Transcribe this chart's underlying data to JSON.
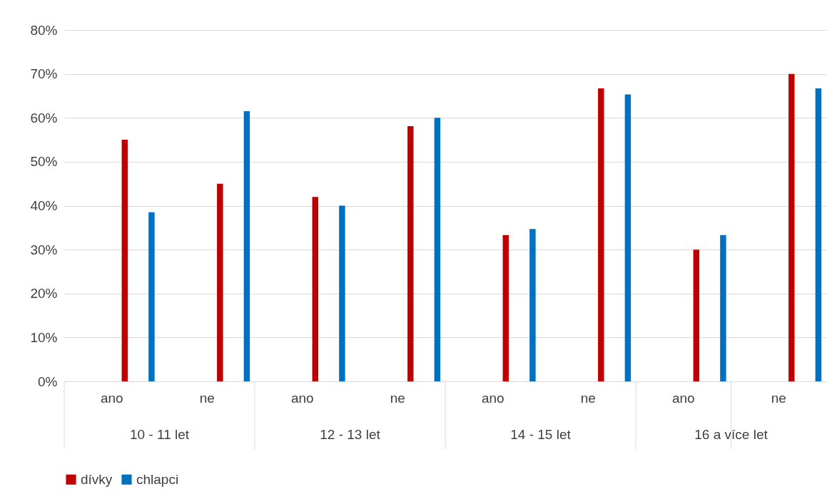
{
  "chart_data": {
    "type": "bar",
    "categories": [
      "ano",
      "ne",
      "ano",
      "ne",
      "ano",
      "ne",
      "ano",
      "ne"
    ],
    "annotations": [
      "10 - 11 let",
      "12 - 13 let",
      "14 - 15 let",
      "16 a více let"
    ],
    "series": [
      {
        "name": "dívky",
        "color": "#c00000",
        "values": [
          55,
          45,
          42,
          58.1,
          33.3,
          66.7,
          30,
          70
        ]
      },
      {
        "name": "chlapci",
        "color": "#0070c0",
        "values": [
          38.5,
          61.5,
          40,
          60,
          34.7,
          65.3,
          33.3,
          66.7
        ]
      }
    ],
    "ylim": [
      0,
      80
    ],
    "yticks": [
      {
        "value": 0,
        "label": "0%"
      },
      {
        "value": 10,
        "label": "10%"
      },
      {
        "value": 20,
        "label": "20%"
      },
      {
        "value": 30,
        "label": "30%"
      },
      {
        "value": 40,
        "label": "40%"
      },
      {
        "value": 50,
        "label": "50%"
      },
      {
        "value": 60,
        "label": "60%"
      },
      {
        "value": 70,
        "label": "70%"
      },
      {
        "value": 80,
        "label": "80%"
      }
    ],
    "grid": "y",
    "legend": "bottom"
  }
}
